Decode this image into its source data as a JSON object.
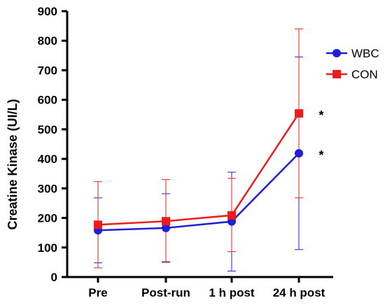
{
  "chart_data": {
    "type": "line",
    "title": "",
    "xlabel": "",
    "ylabel": "Creatine Kinase (UI/L)",
    "categories": [
      "Pre",
      "Post-run",
      "1 h post",
      "24 h post"
    ],
    "ylim": [
      0,
      900
    ],
    "yticks": [
      "0",
      "100",
      "200",
      "300",
      "400",
      "500",
      "600",
      "700",
      "800",
      "900"
    ],
    "grid": false,
    "legend_position": "top-right",
    "series": [
      {
        "name": "WBC",
        "color": "#1f1fd6",
        "marker": "circle",
        "values": [
          158,
          166,
          188,
          419
        ],
        "error_low": [
          48,
          50,
          20,
          93
        ],
        "error_high": [
          268,
          282,
          355,
          745
        ]
      },
      {
        "name": "CON",
        "color": "#ee1c1c",
        "marker": "square",
        "values": [
          177,
          189,
          209,
          554
        ],
        "error_low": [
          31,
          52,
          86,
          268
        ],
        "error_high": [
          323,
          330,
          334,
          840
        ]
      }
    ],
    "annotations": [
      {
        "text": "*",
        "category": "24 h post",
        "y": 554
      },
      {
        "text": "*",
        "category": "24 h post",
        "y": 419
      }
    ]
  }
}
